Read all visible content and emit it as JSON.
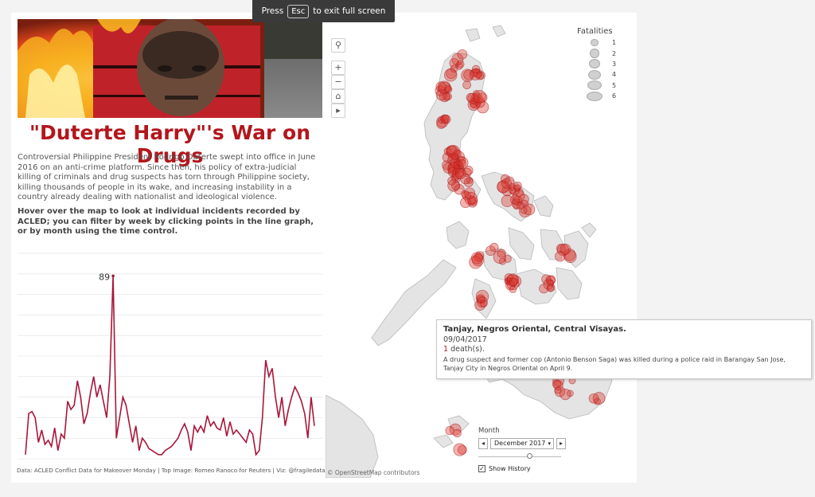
{
  "fullscreen_bar": {
    "press": "Press",
    "key": "Esc",
    "suffix": "to exit full screen"
  },
  "title": "\"Duterte Harry\"'s War on Drugs",
  "intro": "Controversial Philippine President Rodrigo Duterte swept into office in June 2016 on an anti-crime platform. Since then, his policy of extra-judicial killing of criminals and drug suspects has torn through Philippine society, killing thousands of people in its wake, and increasing instability in a country already dealing with nationalist and ideological violence.",
  "hover_note": "Hover over the map to look at individual incidents recorded by ACLED; you can filter by week by clicking points in the line graph, or by month using the time control.",
  "footer": "Data: ACLED Conflict Data for Makeover Monday | Top Image: Romeo Ranoco for Reuters  | Viz: @fragiledata",
  "colors": {
    "accent": "#b3161c",
    "line": "#a8163a",
    "dot_fill": "#d9342b",
    "land": "#e4e4e4"
  },
  "chart_data": {
    "type": "line",
    "series": [
      {
        "values": [
          2,
          22,
          23,
          20,
          8,
          14,
          7,
          9,
          6,
          15,
          4,
          12,
          10,
          28,
          24,
          26,
          38,
          30,
          17,
          22,
          32,
          40,
          30,
          36,
          28,
          20,
          40,
          89,
          10,
          20,
          30,
          26,
          17,
          8,
          16,
          4,
          10,
          8,
          5,
          4,
          3,
          2,
          2,
          4,
          5,
          6,
          8,
          10,
          14,
          17,
          13,
          4,
          16,
          13,
          16,
          13,
          21,
          16,
          18,
          15,
          14,
          20,
          11,
          18,
          12,
          14,
          12,
          10,
          8,
          14,
          12,
          2,
          4,
          20,
          48,
          40,
          44,
          30,
          20,
          30,
          16,
          24,
          30,
          35,
          32,
          28,
          22,
          10,
          30,
          16
        ],
        "labels": [
          {
            "index": 27,
            "text": "89"
          }
        ]
      }
    ],
    "ylim": [
      0,
      100
    ],
    "grid": true
  },
  "map": {
    "legend": {
      "title": "Fatalities",
      "items": [
        "1",
        "2",
        "3",
        "4",
        "5",
        "6"
      ],
      "sizes": [
        1,
        2,
        3,
        4,
        5,
        6
      ]
    },
    "tools": {
      "search_icon": "search-icon",
      "zoom_in": "+",
      "zoom_out": "−",
      "home": "⌂",
      "pan": "▸"
    },
    "attribution": "© OpenStreetMap contributors",
    "month_control": {
      "label": "Month",
      "value": "December 2017",
      "prev": "◂",
      "next": "▸",
      "show_history": "Show History",
      "position": 0.63
    }
  },
  "tooltip": {
    "location": "Tanjay, Negros Oriental, Central Visayas.",
    "date": "09/04/2017",
    "deaths_num": "1",
    "deaths_label": " death(s).",
    "description": "A drug suspect and former cop (Antonio Benson Saga) was killed during a police raid in Barangay San Jose, Tanjay City in Negros Oriental on April 9."
  }
}
